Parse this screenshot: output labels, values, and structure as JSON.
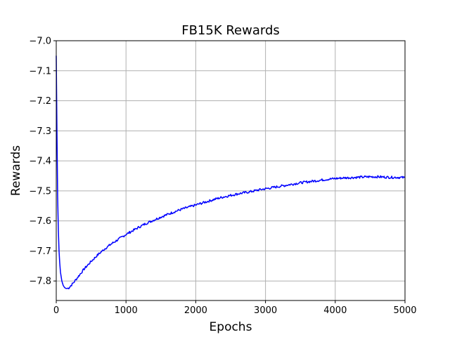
{
  "chart_data": {
    "type": "line",
    "title": "FB15K Rewards",
    "xlabel": "Epochs",
    "ylabel": "Rewards",
    "xlim": [
      0,
      5000
    ],
    "ylim": [
      -7.865,
      -7.0
    ],
    "x_ticks": [
      0,
      1000,
      2000,
      3000,
      4000,
      5000
    ],
    "x_tick_labels": [
      "0",
      "1000",
      "2000",
      "3000",
      "4000",
      "5000"
    ],
    "y_ticks": [
      -7.0,
      -7.1,
      -7.2,
      -7.3,
      -7.4,
      -7.5,
      -7.6,
      -7.7,
      -7.8
    ],
    "y_tick_labels": [
      "−7.0",
      "−7.1",
      "−7.2",
      "−7.3",
      "−7.4",
      "−7.5",
      "−7.6",
      "−7.7",
      "−7.8"
    ],
    "grid": true,
    "series": [
      {
        "color": "#0000ff",
        "x": [
          0,
          10,
          20,
          30,
          40,
          50,
          60,
          80,
          100,
          120,
          140,
          160,
          180,
          200,
          250,
          300,
          350,
          400,
          500,
          600,
          700,
          800,
          900,
          1000,
          1100,
          1200,
          1300,
          1400,
          1500,
          1600,
          1700,
          1800,
          1900,
          2000,
          2100,
          2200,
          2300,
          2400,
          2500,
          2600,
          2700,
          2800,
          2900,
          3000,
          3100,
          3200,
          3300,
          3400,
          3500,
          3600,
          3700,
          3800,
          3900,
          4000,
          4100,
          4200,
          4300,
          4400,
          4500,
          4600,
          4700,
          4800,
          4900,
          5000
        ],
        "y": [
          -7.05,
          -7.3,
          -7.52,
          -7.63,
          -7.7,
          -7.74,
          -7.77,
          -7.8,
          -7.815,
          -7.822,
          -7.825,
          -7.825,
          -7.823,
          -7.818,
          -7.805,
          -7.79,
          -7.775,
          -7.76,
          -7.735,
          -7.712,
          -7.692,
          -7.675,
          -7.66,
          -7.645,
          -7.632,
          -7.619,
          -7.607,
          -7.597,
          -7.587,
          -7.578,
          -7.569,
          -7.561,
          -7.554,
          -7.547,
          -7.54,
          -7.533,
          -7.526,
          -7.52,
          -7.515,
          -7.51,
          -7.506,
          -7.502,
          -7.497,
          -7.493,
          -7.489,
          -7.485,
          -7.481,
          -7.477,
          -7.473,
          -7.47,
          -7.467,
          -7.464,
          -7.461,
          -7.459,
          -7.457,
          -7.456,
          -7.455,
          -7.454,
          -7.453,
          -7.453,
          -7.454,
          -7.455,
          -7.455,
          -7.456
        ]
      }
    ]
  }
}
